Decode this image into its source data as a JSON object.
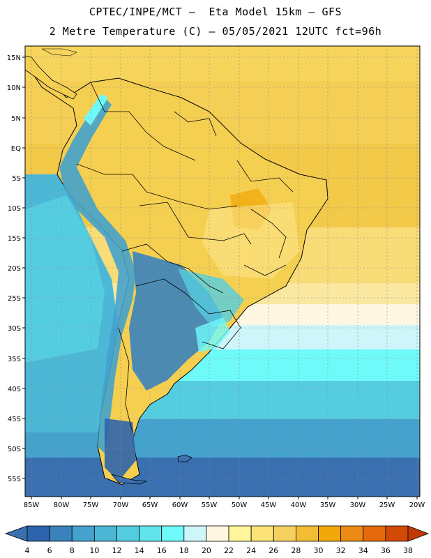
{
  "header": {
    "line1": "CPTEC/INPE/MCT –  Eta Model 15km – GFS",
    "line2": "2 Metre Temperature (C) – 05/05/2021 12UTC fct=96h"
  },
  "axes": {
    "lat_labels": [
      "15N",
      "10N",
      "5N",
      "EQ",
      "5S",
      "10S",
      "15S",
      "20S",
      "25S",
      "30S",
      "35S",
      "40S",
      "45S",
      "50S",
      "55S"
    ],
    "lon_labels": [
      "85W",
      "80W",
      "75W",
      "70W",
      "65W",
      "60W",
      "55W",
      "50W",
      "45W",
      "40W",
      "35W",
      "30W",
      "25W",
      "20W"
    ]
  },
  "colorbar": {
    "labels": [
      "4",
      "6",
      "8",
      "10",
      "12",
      "14",
      "16",
      "18",
      "20",
      "22",
      "24",
      "26",
      "28",
      "30",
      "32",
      "34",
      "36",
      "38"
    ],
    "colors": [
      "#3a6fb0",
      "#2e64ad",
      "#3a82bc",
      "#44a2cc",
      "#4cb8d6",
      "#55cde0",
      "#62e4ec",
      "#6ffafa",
      "#cdf5fa",
      "#fff7e1",
      "#fff59b",
      "#fbe377",
      "#f5d060",
      "#f2bc35",
      "#f2a80a",
      "#eb8b15",
      "#e46a0d",
      "#d24a05",
      "#c03a05"
    ]
  }
}
